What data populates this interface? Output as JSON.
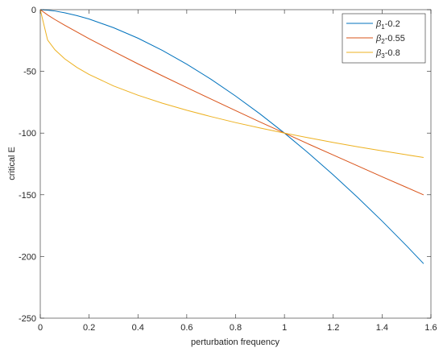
{
  "chart_data": {
    "type": "line",
    "xlabel": "perturbation frequency",
    "ylabel": "critical E",
    "x": [
      0,
      0.03,
      0.06,
      0.1,
      0.15,
      0.2,
      0.3,
      0.4,
      0.5,
      0.6,
      0.7,
      0.8,
      0.9,
      1.0,
      1.1,
      1.2,
      1.3,
      1.4,
      1.5,
      1.57
    ],
    "series": [
      {
        "name": "β1-0.2",
        "color": "#0072bd",
        "values": [
          0,
          -0.4,
          -1.1,
          -2.5,
          -4.8,
          -7.6,
          -14.6,
          -23.1,
          -33.0,
          -44.2,
          -56.5,
          -70.0,
          -84.5,
          -100,
          -116.5,
          -133.9,
          -152.2,
          -171.3,
          -191.3,
          -205.8
        ]
      },
      {
        "name": "β2-0.55",
        "color": "#d95319",
        "values": [
          0,
          -4.3,
          -8.0,
          -12.6,
          -18.1,
          -23.5,
          -33.8,
          -43.9,
          -53.6,
          -63.1,
          -72.5,
          -81.8,
          -91.0,
          -100,
          -109.0,
          -117.8,
          -126.6,
          -135.4,
          -144.0,
          -150.1
        ]
      },
      {
        "name": "β3-0.8",
        "color": "#edb120",
        "values": [
          0,
          -24.6,
          -32.5,
          -39.8,
          -46.8,
          -52.5,
          -61.8,
          -69.3,
          -75.8,
          -81.5,
          -86.7,
          -91.5,
          -95.9,
          -100,
          -103.9,
          -107.6,
          -111.1,
          -114.4,
          -117.6,
          -119.8
        ]
      }
    ],
    "xlim": [
      0,
      1.6
    ],
    "xticks": [
      0,
      0.2,
      0.4,
      0.6,
      0.8,
      1,
      1.2,
      1.4,
      1.6
    ],
    "ylim": [
      -250,
      0
    ],
    "yticks": [
      0,
      -50,
      -100,
      -150,
      -200,
      -250
    ],
    "legend": "upper right"
  }
}
